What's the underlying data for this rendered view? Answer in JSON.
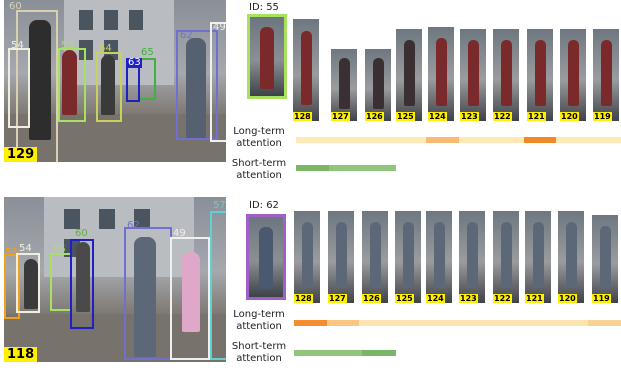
{
  "panels": [
    {
      "frame_number": "129",
      "query_id_label": "ID: 55",
      "query_border": "#a8e060",
      "boxes": [
        {
          "label": "60",
          "color": "#d8d0b0"
        },
        {
          "label": "54",
          "color": "#f0eee0"
        },
        {
          "label": "55",
          "color": "#a8e060"
        },
        {
          "label": "64",
          "color": "#c8d060"
        },
        {
          "label": "65",
          "color": "#40b040"
        },
        {
          "label": "63",
          "color": "#2020c0"
        },
        {
          "label": "62",
          "color": "#7070d0"
        },
        {
          "label": "49",
          "color": "#f0f0f0"
        }
      ],
      "crops": [
        "128",
        "127",
        "126",
        "125",
        "124",
        "123",
        "122",
        "121",
        "120",
        "119"
      ],
      "long_term_label": "Long-term attention",
      "short_term_label": "Short-term attention",
      "long_term_weights": [
        0.1,
        0.1,
        0.1,
        0.1,
        0.5,
        0.1,
        0.1,
        0.95,
        0.1,
        0.1
      ],
      "short_term_weights": [
        0.7,
        0.5,
        0.5
      ]
    },
    {
      "frame_number": "118",
      "query_id_label": "ID: 62",
      "query_border": "#a060c8",
      "boxes": [
        {
          "label": "53",
          "color": "#f0a020"
        },
        {
          "label": "54",
          "color": "#f0eee0"
        },
        {
          "label": "55",
          "color": "#a8e060"
        },
        {
          "label": "60",
          "color": "#60b040"
        },
        {
          "label": "62",
          "color": "#7070d0"
        },
        {
          "label": "49",
          "color": "#f0f0f0"
        },
        {
          "label": "57",
          "color": "#60d0d0"
        }
      ],
      "crops": [
        "128",
        "127",
        "126",
        "125",
        "124",
        "123",
        "122",
        "121",
        "120",
        "119"
      ],
      "long_term_label": "Long-term attention",
      "short_term_label": "Short-term attention",
      "long_term_weights": [
        0.9,
        0.4,
        0.15,
        0.15,
        0.15,
        0.15,
        0.15,
        0.15,
        0.15,
        0.3
      ],
      "short_term_weights": [
        0.5,
        0.5,
        0.7
      ]
    }
  ]
}
